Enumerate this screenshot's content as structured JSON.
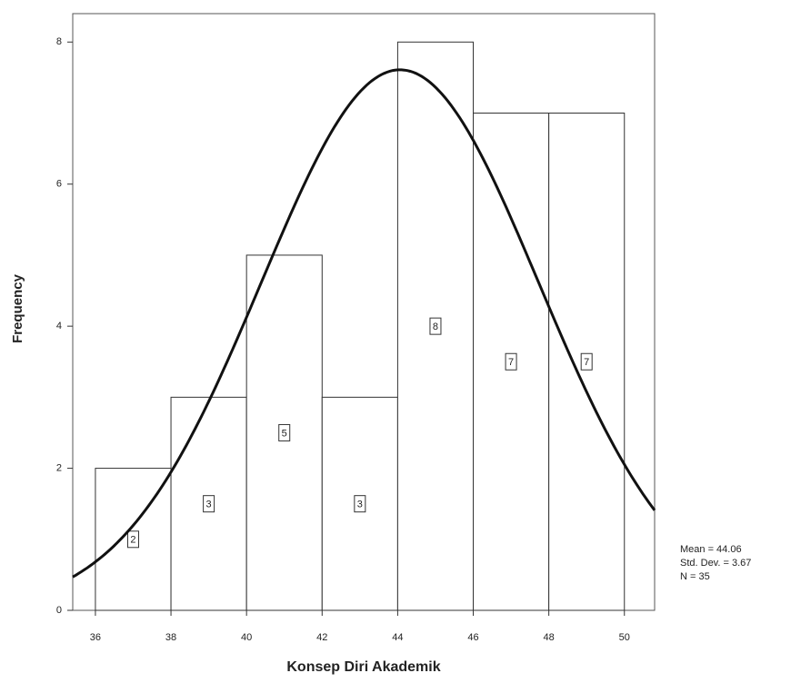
{
  "chart_data": {
    "type": "histogram",
    "x_label": "Konsep Diri Akademik",
    "y_label": "Frequency",
    "bins": [
      36,
      38,
      40,
      42,
      44,
      46,
      48,
      50
    ],
    "values": [
      2,
      3,
      5,
      3,
      8,
      7,
      7
    ],
    "xlim": [
      35.4,
      50.8
    ],
    "ylim": [
      0,
      8.4
    ],
    "xticks": [
      36,
      38,
      40,
      42,
      44,
      46,
      48,
      50
    ],
    "yticks": [
      0,
      2,
      4,
      6,
      8
    ],
    "stats": [
      {
        "label": "Mean = 44.06",
        "value": 44.06
      },
      {
        "label": "Std. Dev. = 3.67",
        "value": 3.67
      },
      {
        "label": "N = 35",
        "value": 35
      }
    ],
    "normal_curve": true,
    "bar_color": "#ffffff"
  }
}
